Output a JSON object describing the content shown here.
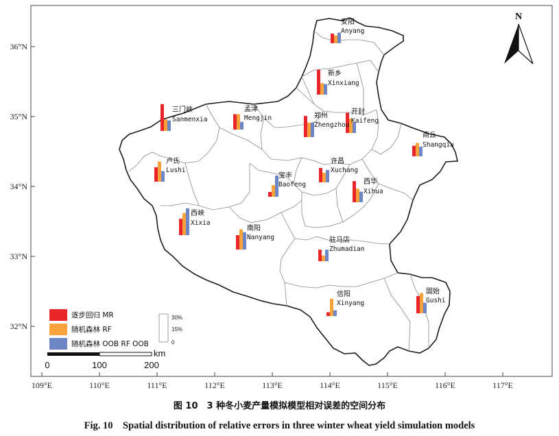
{
  "colors": {
    "MR": "#e8262a",
    "RF": "#f7a23a",
    "OOB": "#6f86c6",
    "frame": "#444444",
    "boundary": "#1a1a1a",
    "inner": "#888888"
  },
  "north_label": "N",
  "x_ticks": [
    "109°E",
    "110°E",
    "111°E",
    "112°E",
    "113°E",
    "114°E",
    "115°E",
    "116°E",
    "117°E"
  ],
  "y_ticks": [
    "36°N",
    "35°N",
    "34°N",
    "33°N",
    "32°N"
  ],
  "legend": {
    "items": [
      {
        "key": "MR",
        "label": "逐步回归 MR"
      },
      {
        "key": "RF",
        "label": "随机森林 RF"
      },
      {
        "key": "OOB",
        "label": "随机森林 OOB RF OOB"
      }
    ],
    "scale_ticks": [
      "30%",
      "15%",
      "0"
    ]
  },
  "scalebar": {
    "labels": [
      "0",
      "100",
      "200"
    ],
    "unit": "km"
  },
  "cities": [
    {
      "cn": "安阳",
      "en": "Anyang",
      "MR": 0.1,
      "RF": 0.08,
      "OOB": 0.11
    },
    {
      "cn": "新乡",
      "en": "Xinxiang",
      "MR": 0.26,
      "RF": 0.12,
      "OOB": 0.11
    },
    {
      "cn": "三门峡",
      "en": "Sanmenxia",
      "MR": 0.28,
      "RF": 0.12,
      "OOB": 0.11
    },
    {
      "cn": "孟津",
      "en": "Mengjin",
      "MR": 0.16,
      "RF": 0.16,
      "OOB": 0.08
    },
    {
      "cn": "郑州",
      "en": "Zhengzhou",
      "MR": 0.22,
      "RF": 0.15,
      "OOB": 0.15
    },
    {
      "cn": "开封",
      "en": "Kaifeng",
      "MR": 0.21,
      "RF": 0.15,
      "OOB": 0.11
    },
    {
      "cn": "商丘",
      "en": "Shangqiu",
      "MR": 0.11,
      "RF": 0.14,
      "OOB": 0.1
    },
    {
      "cn": "卢氏",
      "en": "Lushi",
      "MR": 0.15,
      "RF": 0.21,
      "OOB": 0.11
    },
    {
      "cn": "宝丰",
      "en": "Baofeng",
      "MR": 0.05,
      "RF": 0.12,
      "OOB": 0.22
    },
    {
      "cn": "许昌",
      "en": "Xuchang",
      "MR": 0.15,
      "RF": 0.1,
      "OOB": 0.13
    },
    {
      "cn": "西华",
      "en": "Xihua",
      "MR": 0.22,
      "RF": 0.14,
      "OOB": 0.11
    },
    {
      "cn": "西峡",
      "en": "Xixia",
      "MR": 0.17,
      "RF": 0.23,
      "OOB": 0.28
    },
    {
      "cn": "南阳",
      "en": "Nanyang",
      "MR": 0.15,
      "RF": 0.21,
      "OOB": 0.18
    },
    {
      "cn": "驻马店",
      "en": "Zhumadian",
      "MR": 0.12,
      "RF": 0.06,
      "OOB": 0.12
    },
    {
      "cn": "信阳",
      "en": "Xinyang",
      "MR": 0.04,
      "RF": 0.18,
      "OOB": 0.06
    },
    {
      "cn": "固始",
      "en": "Gushi",
      "MR": 0.18,
      "RF": 0.21,
      "OOB": 0.11
    }
  ],
  "caption_cn": "图 10　3 种冬小麦产量模拟模型相对误差的空间分布",
  "caption_en": "Fig. 10　Spatial distribution of relative errors in three winter wheat yield simulation models"
}
